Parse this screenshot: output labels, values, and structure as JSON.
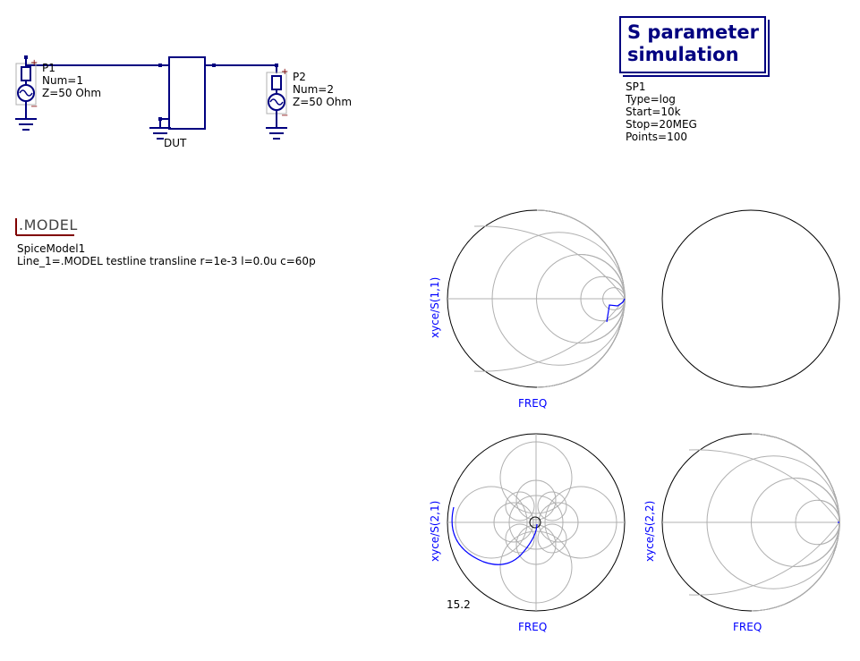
{
  "ports": [
    {
      "id": "P1",
      "num": "Num=1",
      "z": "Z=50 Ohm"
    },
    {
      "id": "P2",
      "num": "Num=2",
      "z": "Z=50 Ohm"
    }
  ],
  "dut": {
    "label": "DUT"
  },
  "sparam": {
    "title_line1": "S parameter",
    "title_line2": "simulation",
    "name": "SP1",
    "type": "Type=log",
    "start": "Start=10k",
    "stop": "Stop=20MEG",
    "points": "Points=100"
  },
  "model": {
    "header": ".MODEL",
    "name": "SpiceModel1",
    "line": "Line_1=.MODEL testline transline r=1e-3 l=0.0u c=60p"
  },
  "diagrams": [
    {
      "ylabel": "xyce/S(1,1)",
      "xlabel": "FREQ"
    },
    {
      "ylabel": "",
      "xlabel": ""
    },
    {
      "ylabel": "xyce/S(2,1)",
      "xlabel": "FREQ",
      "scale_value": "15.2"
    },
    {
      "ylabel": "xyce/S(2,2)",
      "xlabel": "FREQ"
    }
  ],
  "colors": {
    "wire": "#000080",
    "trace": "#0000ff",
    "grid": "#b0b0b0",
    "accent": "#800000"
  }
}
